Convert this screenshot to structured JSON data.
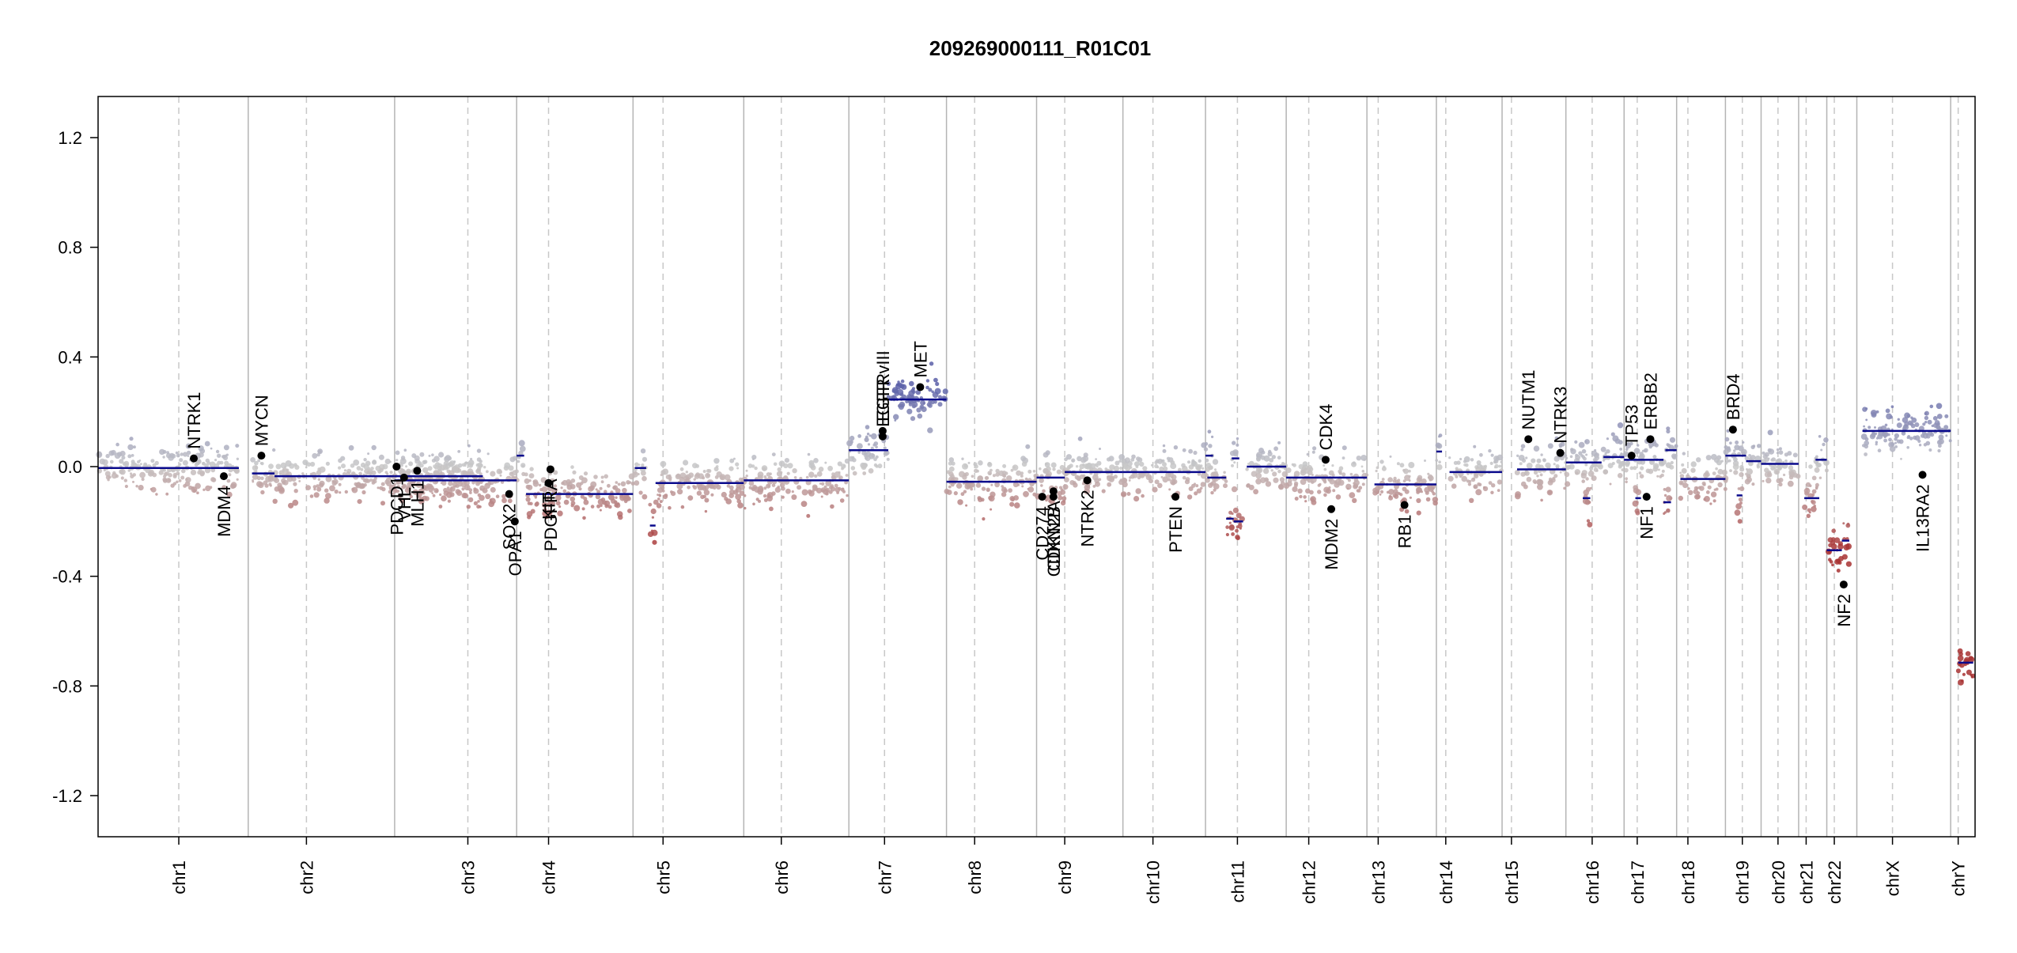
{
  "chart_data": {
    "type": "scatter",
    "title": "209269000111_R01C01",
    "xlabel": "",
    "ylabel": "",
    "ylim": [
      -1.35,
      1.35
    ],
    "yticks": [
      {
        "value": 1.2,
        "label": "1.2"
      },
      {
        "value": 0.8,
        "label": "0.8"
      },
      {
        "value": 0.4,
        "label": "0.4"
      },
      {
        "value": 0.0,
        "label": "0.0"
      },
      {
        "value": -0.4,
        "label": "-0.4"
      },
      {
        "value": -0.8,
        "label": "-0.8"
      },
      {
        "value": -1.2,
        "label": "-1.2"
      }
    ],
    "grid": false,
    "legend": "none",
    "colors": {
      "gain": "#5a5fa8",
      "neutral": "#c8c8c8",
      "loss": "#a83232",
      "segment": "#0a0a8c",
      "gene_point": "#000000",
      "chrom_boundary": "#b4b4b4",
      "centromere": "#c8c8c8"
    },
    "chromosomes": [
      {
        "name": "chr1",
        "start": 0.0,
        "end": 0.08,
        "centromere": 0.043
      },
      {
        "name": "chr2",
        "start": 0.08,
        "end": 0.158,
        "centromere": 0.111
      },
      {
        "name": "chr3",
        "start": 0.158,
        "end": 0.223,
        "centromere": 0.197
      },
      {
        "name": "chr4",
        "start": 0.223,
        "end": 0.285,
        "centromere": 0.24
      },
      {
        "name": "chr5",
        "start": 0.285,
        "end": 0.344,
        "centromere": 0.301
      },
      {
        "name": "chr6",
        "start": 0.344,
        "end": 0.4,
        "centromere": 0.364
      },
      {
        "name": "chr7",
        "start": 0.4,
        "end": 0.452,
        "centromere": 0.419
      },
      {
        "name": "chr8",
        "start": 0.452,
        "end": 0.5,
        "centromere": 0.467
      },
      {
        "name": "chr9",
        "start": 0.5,
        "end": 0.546,
        "centromere": 0.515
      },
      {
        "name": "chr10",
        "start": 0.546,
        "end": 0.59,
        "centromere": 0.562
      },
      {
        "name": "chr11",
        "start": 0.59,
        "end": 0.633,
        "centromere": 0.607
      },
      {
        "name": "chr12",
        "start": 0.633,
        "end": 0.676,
        "centromere": 0.645
      },
      {
        "name": "chr13",
        "start": 0.676,
        "end": 0.713,
        "centromere": 0.682
      },
      {
        "name": "chr14",
        "start": 0.713,
        "end": 0.748,
        "centromere": 0.718
      },
      {
        "name": "chr15",
        "start": 0.748,
        "end": 0.782,
        "centromere": 0.753
      },
      {
        "name": "chr16",
        "start": 0.782,
        "end": 0.813,
        "centromere": 0.796
      },
      {
        "name": "chr17",
        "start": 0.813,
        "end": 0.841,
        "centromere": 0.82
      },
      {
        "name": "chr18",
        "start": 0.841,
        "end": 0.867,
        "centromere": 0.847
      },
      {
        "name": "chr19",
        "start": 0.867,
        "end": 0.886,
        "centromere": 0.876
      },
      {
        "name": "chr20",
        "start": 0.886,
        "end": 0.906,
        "centromere": 0.895
      },
      {
        "name": "chr21",
        "start": 0.906,
        "end": 0.921,
        "centromere": 0.91
      },
      {
        "name": "chr22",
        "start": 0.921,
        "end": 0.937,
        "centromere": 0.925
      },
      {
        "name": "chrX",
        "start": 0.937,
        "end": 0.987,
        "centromere": 0.956
      },
      {
        "name": "chrY",
        "start": 0.987,
        "end": 1.0,
        "centromere": 0.991
      }
    ],
    "segments": [
      {
        "x0": 0.0,
        "x1": 0.06,
        "y": -0.005
      },
      {
        "x0": 0.06,
        "x1": 0.075,
        "y": -0.005
      },
      {
        "x0": 0.082,
        "x1": 0.094,
        "y": -0.025
      },
      {
        "x0": 0.094,
        "x1": 0.158,
        "y": -0.035
      },
      {
        "x0": 0.158,
        "x1": 0.205,
        "y": -0.035
      },
      {
        "x0": 0.158,
        "x1": 0.223,
        "y": -0.05
      },
      {
        "x0": 0.223,
        "x1": 0.227,
        "y": 0.04
      },
      {
        "x0": 0.228,
        "x1": 0.285,
        "y": -0.1
      },
      {
        "x0": 0.286,
        "x1": 0.292,
        "y": -0.005
      },
      {
        "x0": 0.294,
        "x1": 0.297,
        "y": -0.215
      },
      {
        "x0": 0.297,
        "x1": 0.344,
        "y": -0.06
      },
      {
        "x0": 0.344,
        "x1": 0.4,
        "y": -0.05
      },
      {
        "x0": 0.4,
        "x1": 0.421,
        "y": 0.06
      },
      {
        "x0": 0.421,
        "x1": 0.452,
        "y": 0.245
      },
      {
        "x0": 0.452,
        "x1": 0.5,
        "y": -0.055
      },
      {
        "x0": 0.5,
        "x1": 0.515,
        "y": -0.04
      },
      {
        "x0": 0.515,
        "x1": 0.546,
        "y": -0.02
      },
      {
        "x0": 0.546,
        "x1": 0.59,
        "y": -0.02
      },
      {
        "x0": 0.591,
        "x1": 0.601,
        "y": -0.04
      },
      {
        "x0": 0.59,
        "x1": 0.594,
        "y": 0.04
      },
      {
        "x0": 0.601,
        "x1": 0.605,
        "y": -0.19
      },
      {
        "x0": 0.605,
        "x1": 0.61,
        "y": -0.2
      },
      {
        "x0": 0.604,
        "x1": 0.608,
        "y": 0.03
      },
      {
        "x0": 0.612,
        "x1": 0.633,
        "y": 0.0
      },
      {
        "x0": 0.633,
        "x1": 0.676,
        "y": -0.04
      },
      {
        "x0": 0.68,
        "x1": 0.713,
        "y": -0.065
      },
      {
        "x0": 0.713,
        "x1": 0.716,
        "y": 0.055
      },
      {
        "x0": 0.72,
        "x1": 0.748,
        "y": -0.02
      },
      {
        "x0": 0.756,
        "x1": 0.782,
        "y": -0.01
      },
      {
        "x0": 0.782,
        "x1": 0.801,
        "y": 0.015
      },
      {
        "x0": 0.791,
        "x1": 0.795,
        "y": -0.115
      },
      {
        "x0": 0.802,
        "x1": 0.813,
        "y": 0.035
      },
      {
        "x0": 0.813,
        "x1": 0.834,
        "y": 0.025
      },
      {
        "x0": 0.819,
        "x1": 0.822,
        "y": -0.115
      },
      {
        "x0": 0.835,
        "x1": 0.841,
        "y": 0.06
      },
      {
        "x0": 0.834,
        "x1": 0.838,
        "y": -0.13
      },
      {
        "x0": 0.843,
        "x1": 0.867,
        "y": -0.045
      },
      {
        "x0": 0.867,
        "x1": 0.878,
        "y": 0.04
      },
      {
        "x0": 0.878,
        "x1": 0.886,
        "y": 0.02
      },
      {
        "x0": 0.873,
        "x1": 0.876,
        "y": -0.105
      },
      {
        "x0": 0.886,
        "x1": 0.906,
        "y": 0.01
      },
      {
        "x0": 0.909,
        "x1": 0.917,
        "y": -0.115
      },
      {
        "x0": 0.915,
        "x1": 0.921,
        "y": 0.025
      },
      {
        "x0": 0.921,
        "x1": 0.929,
        "y": -0.305
      },
      {
        "x0": 0.929,
        "x1": 0.933,
        "y": -0.27
      },
      {
        "x0": 0.94,
        "x1": 0.987,
        "y": 0.13
      },
      {
        "x0": 0.991,
        "x1": 0.999,
        "y": -0.715
      }
    ],
    "genes": [
      {
        "name": "NTRK1",
        "x": 0.051,
        "y": 0.03,
        "label_side": "up"
      },
      {
        "name": "MDM4",
        "x": 0.067,
        "y": -0.035,
        "label_side": "down"
      },
      {
        "name": "MYCN",
        "x": 0.087,
        "y": 0.04,
        "label_side": "up"
      },
      {
        "name": "PDCD1",
        "x": 0.159,
        "y": 0.0,
        "label_side": "down"
      },
      {
        "name": "VHL",
        "x": 0.163,
        "y": -0.04,
        "label_side": "down"
      },
      {
        "name": "MLH1",
        "x": 0.17,
        "y": -0.015,
        "label_side": "down"
      },
      {
        "name": "SOX2",
        "x": 0.219,
        "y": -0.1,
        "label_side": "down"
      },
      {
        "name": "OPA1",
        "x": 0.222,
        "y": -0.2,
        "label_side": "down"
      },
      {
        "name": "PDGFRA",
        "x": 0.241,
        "y": -0.01,
        "label_side": "down"
      },
      {
        "name": "KIT",
        "x": 0.24,
        "y": -0.06,
        "label_side": "down"
      },
      {
        "name": "EGFR vIII",
        "x": 0.418,
        "y": 0.11,
        "label_side": "up"
      },
      {
        "name": "EGFR",
        "x": 0.418,
        "y": 0.13,
        "label_side": "up"
      },
      {
        "name": "MET",
        "x": 0.438,
        "y": 0.29,
        "label_side": "up"
      },
      {
        "name": "CD274",
        "x": 0.503,
        "y": -0.11,
        "label_side": "down"
      },
      {
        "name": "CDKN2A",
        "x": 0.509,
        "y": -0.09,
        "label_side": "down"
      },
      {
        "name": "CDKN2B",
        "x": 0.509,
        "y": -0.11,
        "label_side": "down"
      },
      {
        "name": "NTRK2",
        "x": 0.527,
        "y": -0.05,
        "label_side": "down"
      },
      {
        "name": "PTEN",
        "x": 0.574,
        "y": -0.11,
        "label_side": "down"
      },
      {
        "name": "CDK4",
        "x": 0.654,
        "y": 0.025,
        "label_side": "up"
      },
      {
        "name": "MDM2",
        "x": 0.657,
        "y": -0.155,
        "label_side": "down"
      },
      {
        "name": "RB1",
        "x": 0.696,
        "y": -0.14,
        "label_side": "down"
      },
      {
        "name": "NUTM1",
        "x": 0.762,
        "y": 0.1,
        "label_side": "up"
      },
      {
        "name": "NTRK3",
        "x": 0.779,
        "y": 0.05,
        "label_side": "up"
      },
      {
        "name": "TP53",
        "x": 0.817,
        "y": 0.04,
        "label_side": "up"
      },
      {
        "name": "NF1",
        "x": 0.825,
        "y": -0.11,
        "label_side": "down"
      },
      {
        "name": "ERBB2",
        "x": 0.827,
        "y": 0.1,
        "label_side": "up"
      },
      {
        "name": "BRD4",
        "x": 0.871,
        "y": 0.135,
        "label_side": "up"
      },
      {
        "name": "NF2",
        "x": 0.93,
        "y": -0.43,
        "label_side": "down"
      },
      {
        "name": "IL13RA2",
        "x": 0.972,
        "y": -0.03,
        "label_side": "down"
      }
    ]
  }
}
